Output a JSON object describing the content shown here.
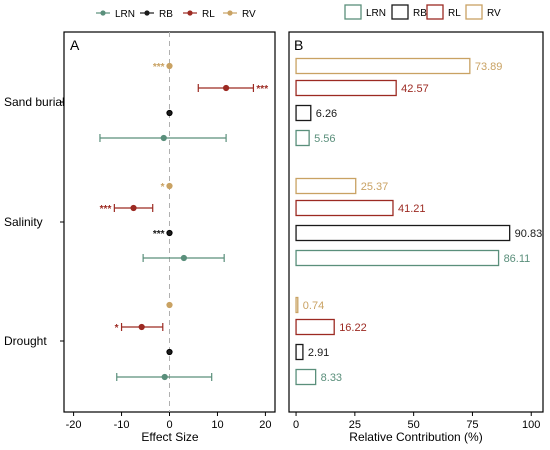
{
  "chart_data": [
    {
      "type": "scatter",
      "panel_label": "A",
      "xlabel": "Effect Size",
      "ylabel": "",
      "xlim": [
        -22,
        22
      ],
      "xticks": [
        -20,
        -10,
        0,
        10,
        20
      ],
      "xtick_labels": [
        "-20",
        "-10",
        "0",
        "10",
        "20"
      ],
      "categories": [
        "Sand burial",
        "Salinity",
        "Drought"
      ],
      "legend": {
        "position": "top",
        "entries": [
          "LRN",
          "RB",
          "RL",
          "RV"
        ]
      },
      "reference_line": 0,
      "series": [
        {
          "name": "LRN",
          "color": "#5a8f7b",
          "points": [
            {
              "category": "Sand burial",
              "value": -1.2,
              "ci": [
                -14.5,
                11.8
              ],
              "sig": ""
            },
            {
              "category": "Salinity",
              "value": 3.0,
              "ci": [
                -5.5,
                11.4
              ],
              "sig": ""
            },
            {
              "category": "Drought",
              "value": -1.0,
              "ci": [
                -11.0,
                8.8
              ],
              "sig": ""
            }
          ]
        },
        {
          "name": "RB",
          "color": "#1a1a1a",
          "points": [
            {
              "category": "Sand burial",
              "value": 0.0,
              "ci": [
                -0.4,
                0.4
              ],
              "sig": ""
            },
            {
              "category": "Salinity",
              "value": 0.0,
              "ci": [
                -0.4,
                0.4
              ],
              "sig": "***"
            },
            {
              "category": "Drought",
              "value": 0.0,
              "ci": [
                -0.4,
                0.4
              ],
              "sig": ""
            }
          ]
        },
        {
          "name": "RL",
          "color": "#9c2a22",
          "points": [
            {
              "category": "Sand burial",
              "value": 11.8,
              "ci": [
                6.0,
                17.5
              ],
              "sig": "***"
            },
            {
              "category": "Salinity",
              "value": -7.5,
              "ci": [
                -11.5,
                -3.5
              ],
              "sig": "***"
            },
            {
              "category": "Drought",
              "value": -5.8,
              "ci": [
                -10.0,
                -1.4
              ],
              "sig": "*"
            }
          ]
        },
        {
          "name": "RV",
          "color": "#c9a263",
          "points": [
            {
              "category": "Sand burial",
              "value": 0.0,
              "ci": [
                -0.4,
                0.4
              ],
              "sig": "***"
            },
            {
              "category": "Salinity",
              "value": 0.0,
              "ci": [
                -0.4,
                0.4
              ],
              "sig": "*"
            },
            {
              "category": "Drought",
              "value": 0.0,
              "ci": [
                -0.4,
                0.4
              ],
              "sig": ""
            }
          ]
        }
      ]
    },
    {
      "type": "bar",
      "orientation": "horizontal",
      "panel_label": "B",
      "xlabel": "Relative Contribution (%)",
      "xlim": [
        -3,
        105
      ],
      "xticks": [
        0,
        25,
        50,
        75,
        100
      ],
      "xtick_labels": [
        "0",
        "25",
        "50",
        "75",
        "100"
      ],
      "categories": [
        "Sand burial",
        "Salinity",
        "Drought"
      ],
      "legend": {
        "position": "top",
        "entries": [
          "LRN",
          "RB",
          "RL",
          "RV"
        ]
      },
      "series": [
        {
          "name": "LRN",
          "color": "#5a8f7b",
          "values": [
            5.56,
            86.11,
            8.33
          ],
          "labels": [
            "5.56",
            "86.11",
            "8.33"
          ]
        },
        {
          "name": "RB",
          "color": "#1a1a1a",
          "values": [
            6.26,
            90.83,
            2.91
          ],
          "labels": [
            "6.26",
            "90.83",
            "2.91"
          ]
        },
        {
          "name": "RL",
          "color": "#9c2a22",
          "values": [
            42.57,
            41.21,
            16.22
          ],
          "labels": [
            "42.57",
            "41.21",
            "16.22"
          ]
        },
        {
          "name": "RV",
          "color": "#c9a263",
          "values": [
            73.89,
            25.37,
            0.74
          ],
          "labels": [
            "73.89",
            "25.37",
            "0.74"
          ]
        }
      ]
    }
  ]
}
